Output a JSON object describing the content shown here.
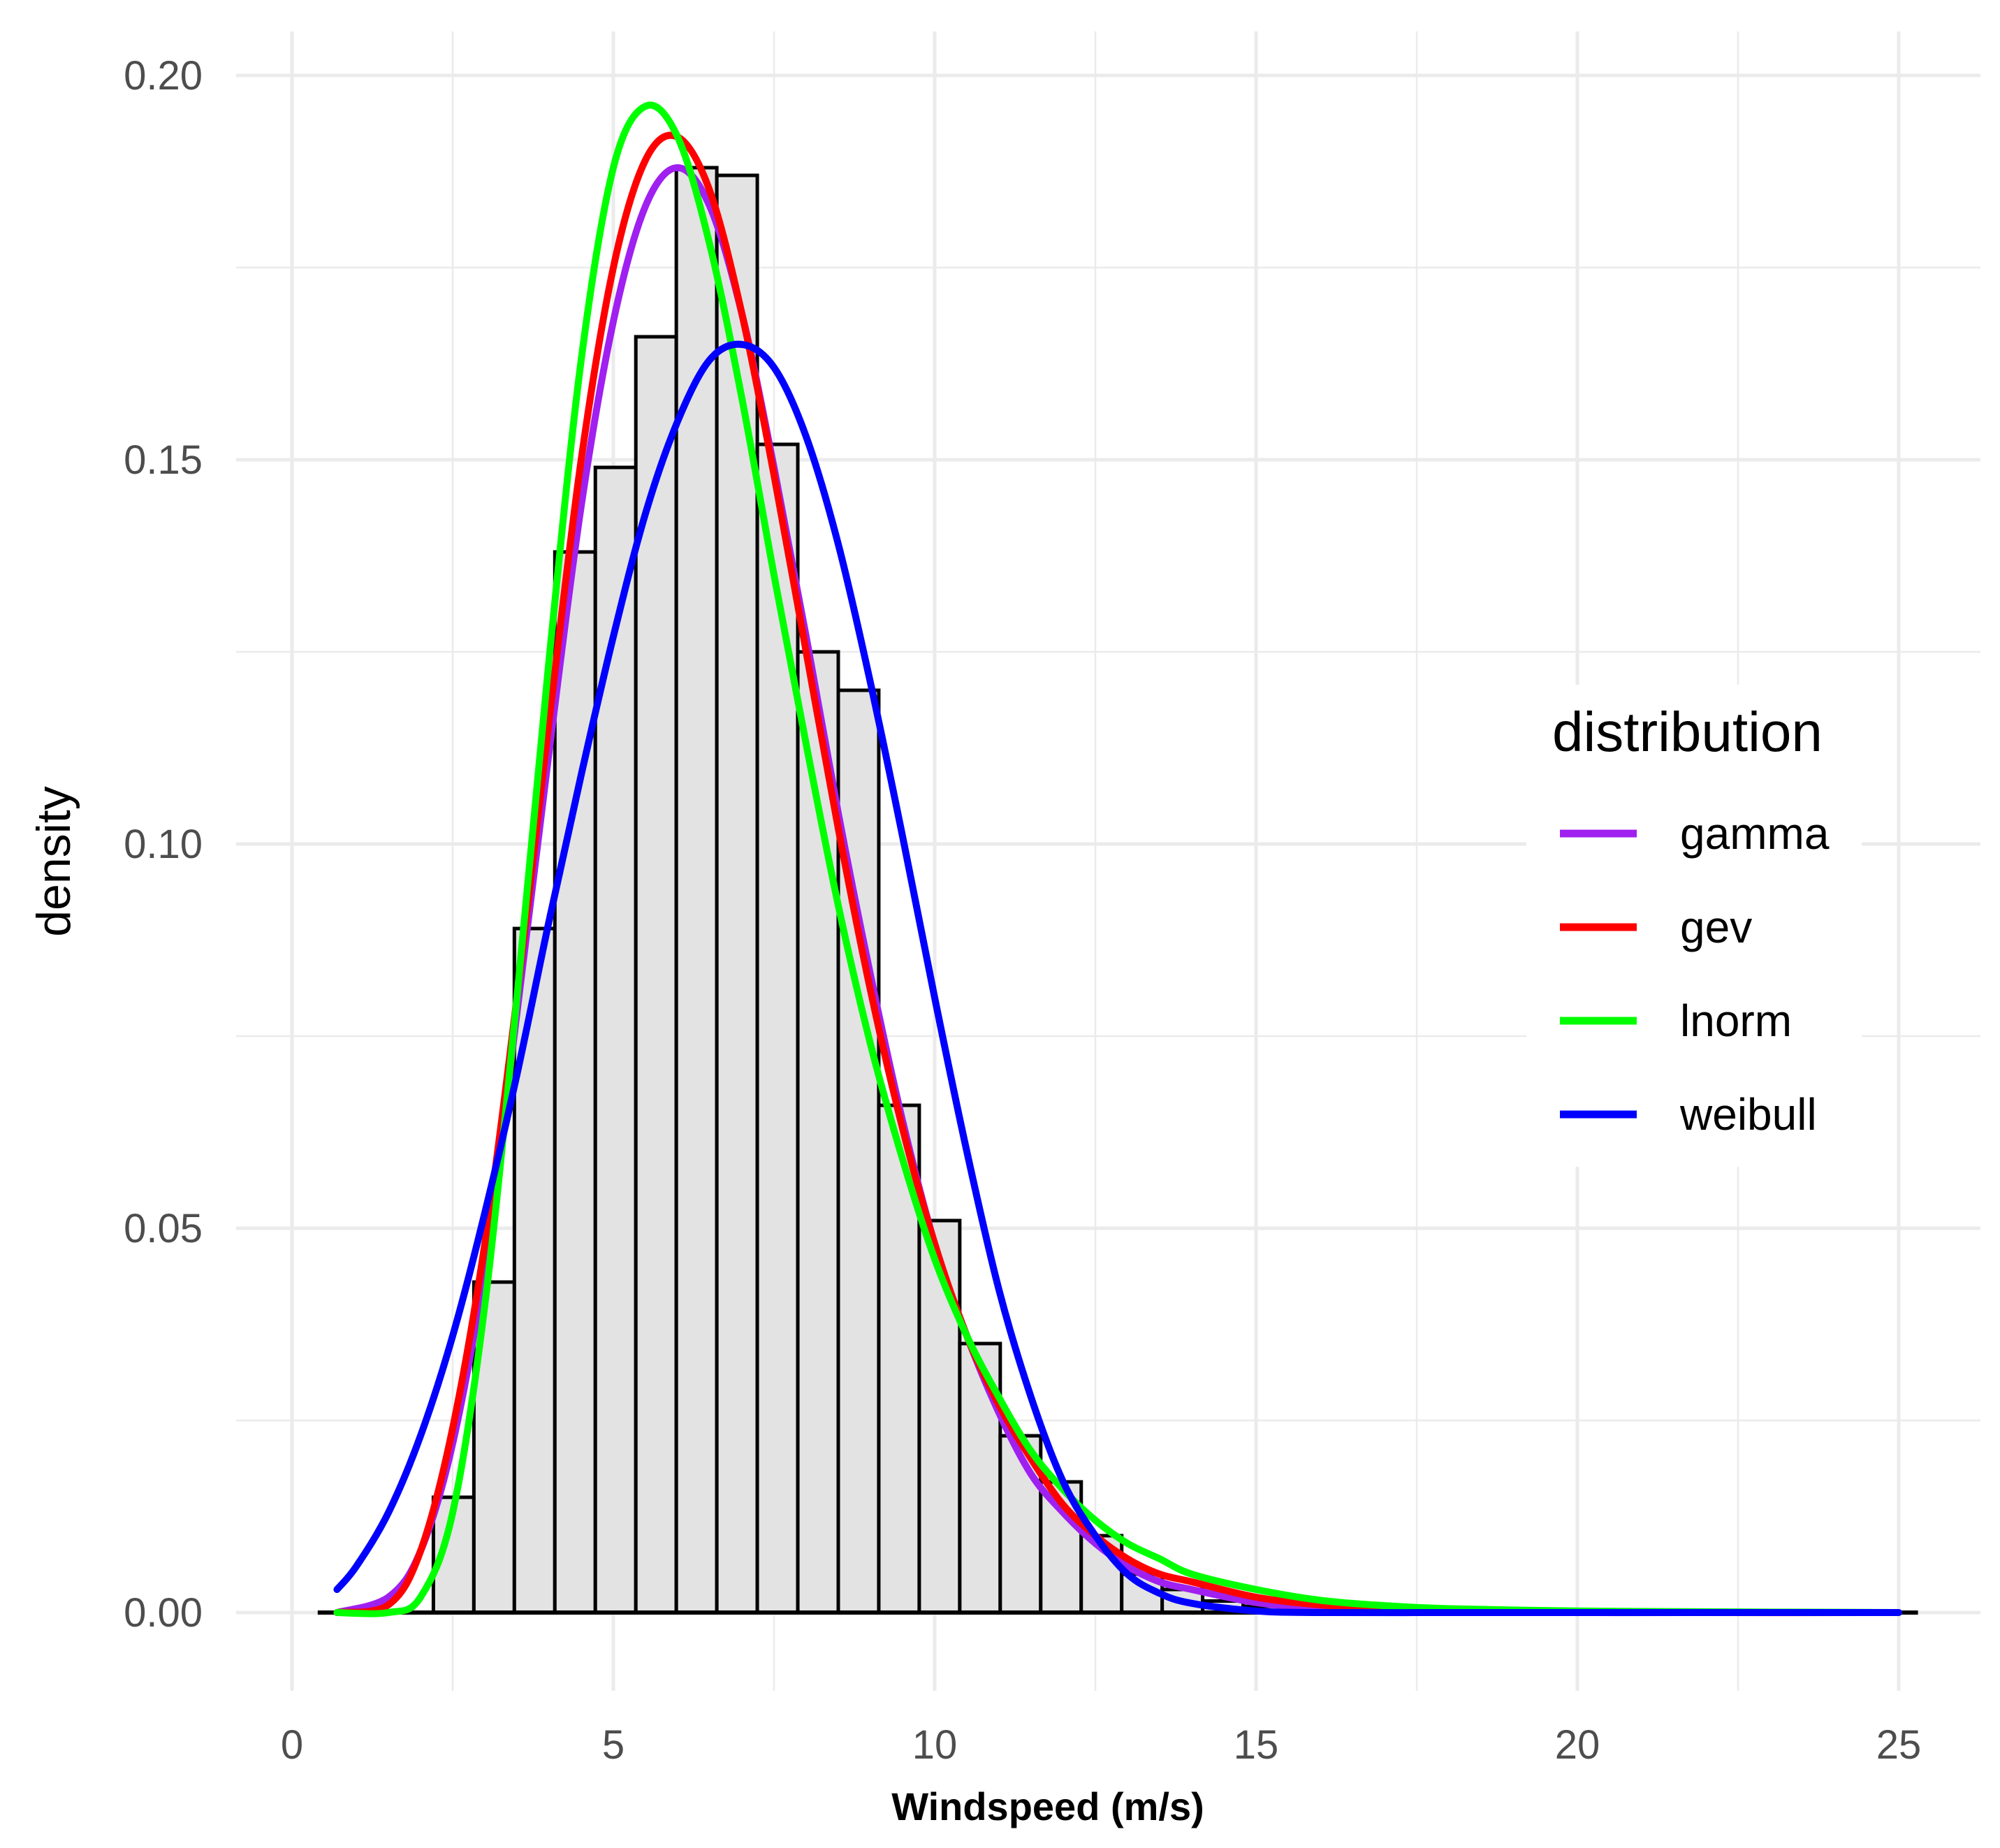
{
  "chart_data": {
    "type": "bar",
    "subtype": "histogram-with-density-curves",
    "title": "",
    "xlabel": "Windspeed (m/s)",
    "ylabel": "density",
    "xlim": [
      0,
      25
    ],
    "ylim": [
      0,
      0.2
    ],
    "x_ticks": [
      "0",
      "5",
      "10",
      "15",
      "20",
      "25"
    ],
    "y_ticks": [
      "0.00",
      "0.05",
      "0.10",
      "0.15",
      "0.20"
    ],
    "grid": true,
    "bar_fill": "#e3e3e3",
    "bar_outline": "#000000",
    "bins": [
      {
        "x0": 2.2,
        "x1": 2.83,
        "density": 0.015
      },
      {
        "x0": 2.83,
        "x1": 3.46,
        "density": 0.043
      },
      {
        "x0": 3.46,
        "x1": 4.09,
        "density": 0.089
      },
      {
        "x0": 4.09,
        "x1": 4.72,
        "density": 0.138
      },
      {
        "x0": 4.72,
        "x1": 5.35,
        "density": 0.149
      },
      {
        "x0": 5.35,
        "x1": 5.98,
        "density": 0.166
      },
      {
        "x0": 5.98,
        "x1": 6.61,
        "density": 0.188
      },
      {
        "x0": 6.61,
        "x1": 7.24,
        "density": 0.187
      },
      {
        "x0": 7.24,
        "x1": 7.87,
        "density": 0.152
      },
      {
        "x0": 7.87,
        "x1": 8.5,
        "density": 0.125
      },
      {
        "x0": 8.5,
        "x1": 9.13,
        "density": 0.12
      },
      {
        "x0": 9.13,
        "x1": 9.76,
        "density": 0.066
      },
      {
        "x0": 9.76,
        "x1": 10.39,
        "density": 0.051
      },
      {
        "x0": 10.39,
        "x1": 11.02,
        "density": 0.035
      },
      {
        "x0": 11.02,
        "x1": 11.65,
        "density": 0.023
      },
      {
        "x0": 11.65,
        "x1": 12.28,
        "density": 0.017
      },
      {
        "x0": 12.28,
        "x1": 12.91,
        "density": 0.01
      },
      {
        "x0": 12.91,
        "x1": 13.54,
        "density": 0.005
      },
      {
        "x0": 13.54,
        "x1": 14.17,
        "density": 0.003
      },
      {
        "x0": 14.17,
        "x1": 14.8,
        "density": 0.0015
      },
      {
        "x0": 14.8,
        "x1": 15.43,
        "density": 0.0008
      },
      {
        "x0": 15.43,
        "x1": 16.06,
        "density": 0.0004
      },
      {
        "x0": 16.06,
        "x1": 16.69,
        "density": 0.0003
      },
      {
        "x0": 16.69,
        "x1": 17.32,
        "density": 0.0002
      },
      {
        "x0": 17.32,
        "x1": 17.95,
        "density": 0.0001
      }
    ],
    "legend": {
      "title": "distribution",
      "position": "right"
    },
    "series": [
      {
        "name": "gamma",
        "color": "#a020f0",
        "x": [
          0.7,
          1.5,
          2,
          2.5,
          3,
          3.5,
          4,
          4.5,
          5,
          5.5,
          6,
          6.5,
          7,
          7.5,
          8,
          8.5,
          9,
          9.5,
          10,
          10.5,
          11,
          11.5,
          12,
          12.5,
          13,
          13.5,
          14,
          15,
          16,
          17,
          18,
          20,
          22,
          25
        ],
        "y": [
          0.0,
          0.002,
          0.008,
          0.022,
          0.045,
          0.078,
          0.112,
          0.144,
          0.168,
          0.183,
          0.188,
          0.183,
          0.169,
          0.149,
          0.127,
          0.104,
          0.083,
          0.064,
          0.048,
          0.036,
          0.026,
          0.018,
          0.013,
          0.009,
          0.006,
          0.004,
          0.003,
          0.0013,
          0.0005,
          0.0002,
          0.0001,
          0.0,
          0.0,
          0.0
        ]
      },
      {
        "name": "gev",
        "color": "#ff0000",
        "x": [
          0.7,
          1.5,
          2,
          2.5,
          3,
          3.5,
          4,
          4.5,
          5,
          5.5,
          6,
          6.5,
          7,
          7.5,
          8,
          8.5,
          9,
          9.5,
          10,
          10.5,
          11,
          11.5,
          12,
          12.5,
          13,
          13.5,
          14,
          15,
          16,
          17,
          18,
          20,
          22,
          25
        ],
        "y": [
          0.0,
          0.001,
          0.008,
          0.024,
          0.048,
          0.08,
          0.116,
          0.15,
          0.175,
          0.189,
          0.192,
          0.185,
          0.169,
          0.148,
          0.125,
          0.102,
          0.081,
          0.063,
          0.048,
          0.036,
          0.027,
          0.02,
          0.014,
          0.01,
          0.007,
          0.005,
          0.004,
          0.002,
          0.001,
          0.0005,
          0.0002,
          0.0001,
          0.0,
          0.0
        ]
      },
      {
        "name": "lnorm",
        "color": "#00ff00",
        "x": [
          0.7,
          1.5,
          2,
          2.5,
          3,
          3.5,
          4,
          4.5,
          5,
          5.5,
          6,
          6.5,
          7,
          7.5,
          8,
          8.5,
          9,
          9.5,
          10,
          10.5,
          11,
          11.5,
          12,
          12.5,
          13,
          13.5,
          14,
          15,
          16,
          17,
          18,
          20,
          22,
          25
        ],
        "y": [
          0.0,
          0.0,
          0.002,
          0.013,
          0.04,
          0.08,
          0.124,
          0.163,
          0.188,
          0.196,
          0.192,
          0.178,
          0.158,
          0.135,
          0.113,
          0.092,
          0.074,
          0.059,
          0.046,
          0.036,
          0.028,
          0.021,
          0.016,
          0.012,
          0.009,
          0.007,
          0.005,
          0.003,
          0.0016,
          0.0009,
          0.0005,
          0.0002,
          0.0001,
          0.0
        ]
      },
      {
        "name": "weibull",
        "color": "#0000ff",
        "x": [
          0.7,
          1,
          1.5,
          2,
          2.5,
          3,
          3.5,
          4,
          4.5,
          5,
          5.5,
          6,
          6.5,
          7,
          7.5,
          8,
          8.5,
          9,
          9.5,
          10,
          10.5,
          11,
          11.5,
          12,
          12.5,
          13,
          13.5,
          14,
          15,
          16,
          18,
          20,
          25
        ],
        "y": [
          0.003,
          0.006,
          0.013,
          0.023,
          0.036,
          0.052,
          0.07,
          0.09,
          0.109,
          0.127,
          0.143,
          0.155,
          0.163,
          0.165,
          0.162,
          0.153,
          0.139,
          0.121,
          0.101,
          0.08,
          0.06,
          0.042,
          0.028,
          0.017,
          0.01,
          0.005,
          0.0025,
          0.0012,
          0.0002,
          0.0,
          0.0,
          0.0,
          0.0
        ]
      }
    ]
  }
}
